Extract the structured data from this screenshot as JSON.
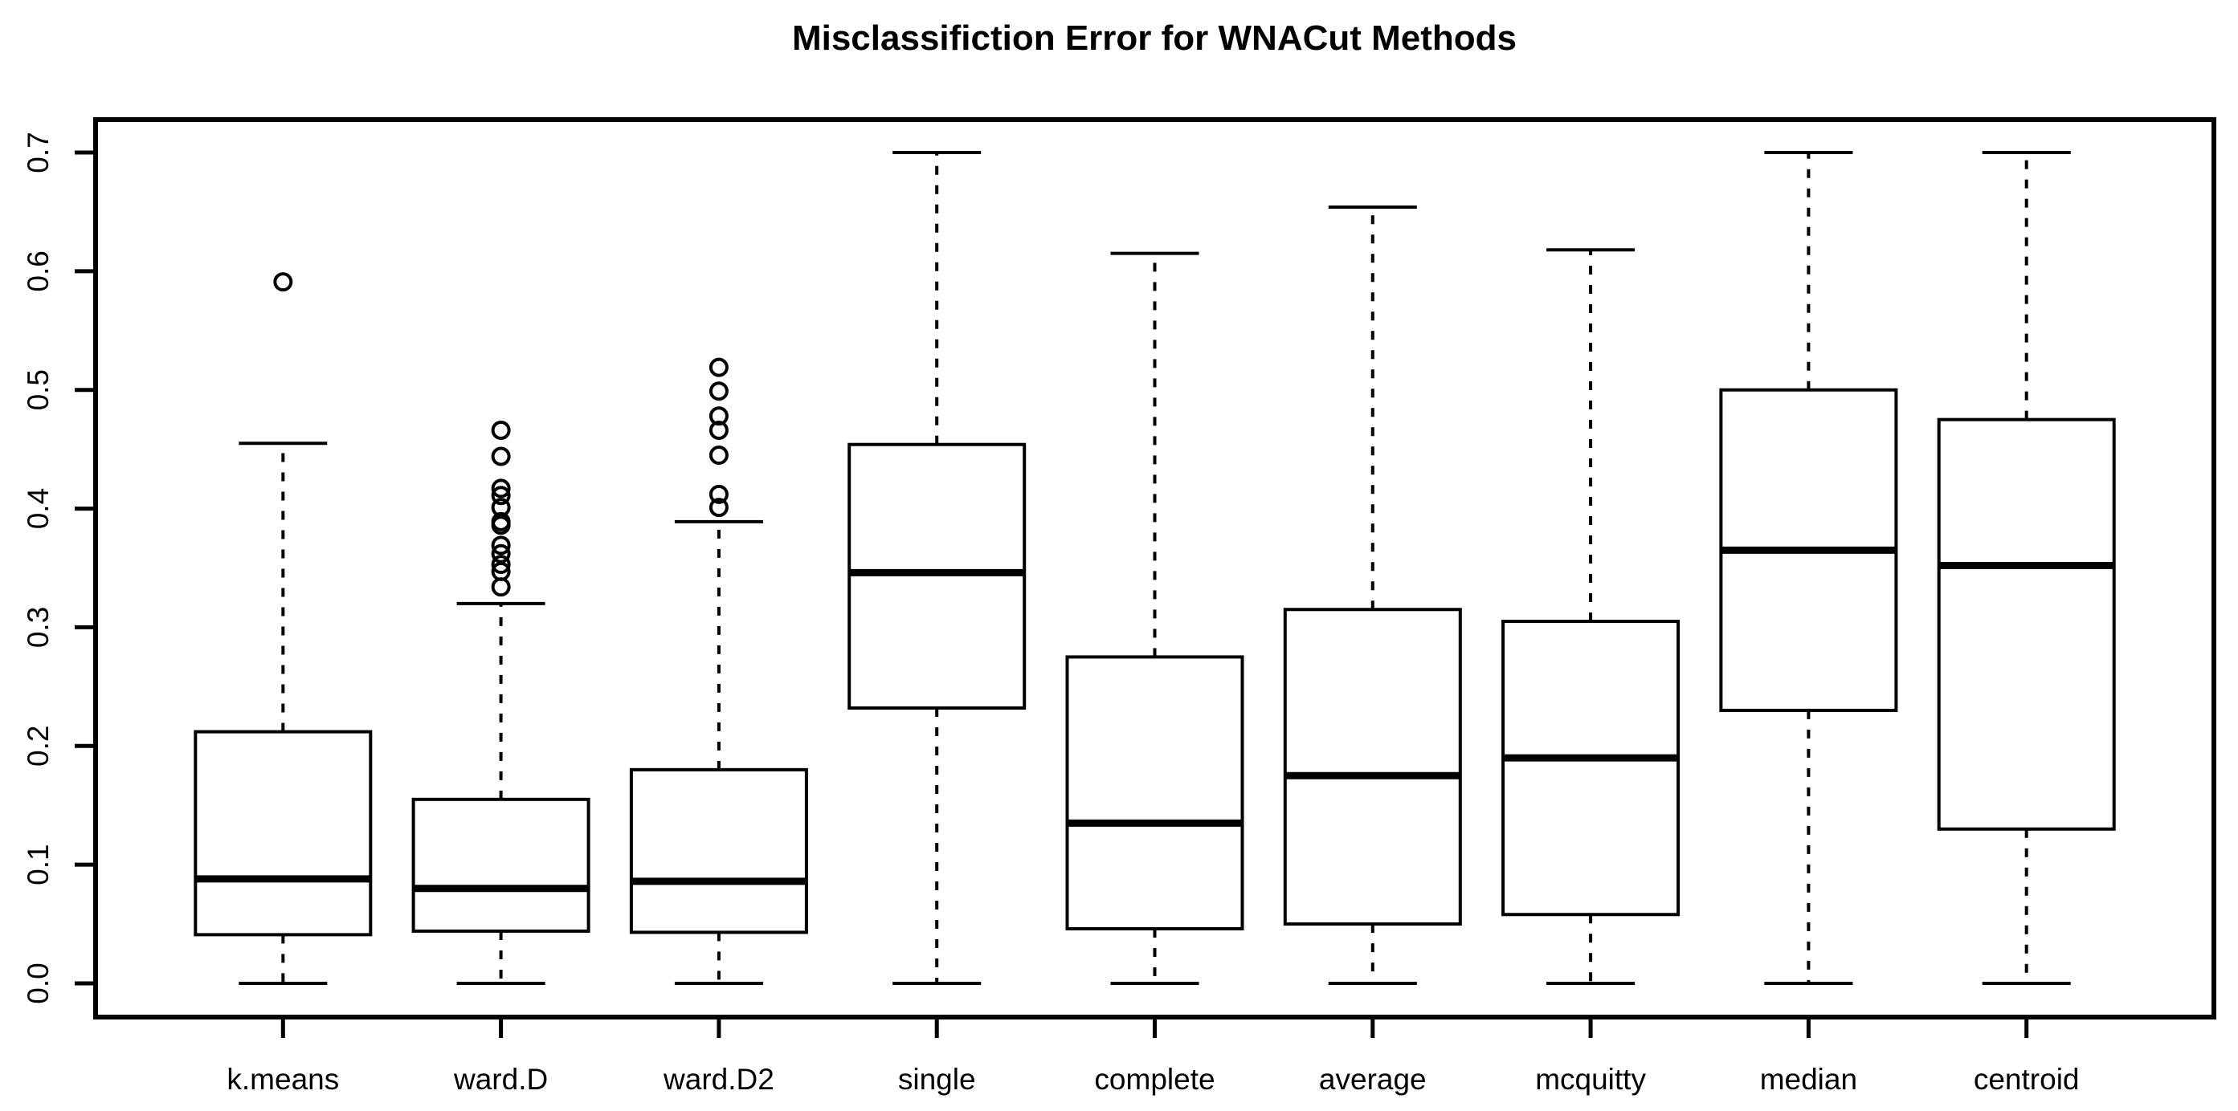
{
  "chart_data": {
    "type": "boxplot",
    "title": "Misclassifiction Error for WNACut Methods",
    "xlabel": "",
    "ylabel": "",
    "ylim": [
      0,
      0.7
    ],
    "yticks": [
      0.0,
      0.1,
      0.2,
      0.3,
      0.4,
      0.5,
      0.6,
      0.7
    ],
    "ytick_labels": [
      "0.0",
      "0.1",
      "0.2",
      "0.3",
      "0.4",
      "0.5",
      "0.6",
      "0.7"
    ],
    "grid": false,
    "legend": null,
    "categories": [
      "k.means",
      "ward.D",
      "ward.D2",
      "single",
      "complete",
      "average",
      "mcquitty",
      "median",
      "centroid"
    ],
    "series": [
      {
        "name": "k.means",
        "whisker_low": 0.0,
        "q1": 0.041,
        "median": 0.088,
        "q3": 0.212,
        "whisker_high": 0.455,
        "outliers": [
          0.591
        ]
      },
      {
        "name": "ward.D",
        "whisker_low": 0.0,
        "q1": 0.044,
        "median": 0.08,
        "q3": 0.155,
        "whisker_high": 0.32,
        "outliers": [
          0.466,
          0.444,
          0.417,
          0.411,
          0.401,
          0.389,
          0.386,
          0.369,
          0.362,
          0.353,
          0.347,
          0.334
        ]
      },
      {
        "name": "ward.D2",
        "whisker_low": 0.0,
        "q1": 0.043,
        "median": 0.086,
        "q3": 0.18,
        "whisker_high": 0.389,
        "outliers": [
          0.519,
          0.499,
          0.478,
          0.466,
          0.445,
          0.412,
          0.401
        ]
      },
      {
        "name": "single",
        "whisker_low": 0.0,
        "q1": 0.232,
        "median": 0.346,
        "q3": 0.454,
        "whisker_high": 0.7,
        "outliers": []
      },
      {
        "name": "complete",
        "whisker_low": 0.0,
        "q1": 0.046,
        "median": 0.135,
        "q3": 0.275,
        "whisker_high": 0.615,
        "outliers": []
      },
      {
        "name": "average",
        "whisker_low": 0.0,
        "q1": 0.05,
        "median": 0.175,
        "q3": 0.315,
        "whisker_high": 0.654,
        "outliers": []
      },
      {
        "name": "mcquitty",
        "whisker_low": 0.0,
        "q1": 0.058,
        "median": 0.19,
        "q3": 0.305,
        "whisker_high": 0.618,
        "outliers": []
      },
      {
        "name": "median",
        "whisker_low": 0.0,
        "q1": 0.23,
        "median": 0.365,
        "q3": 0.5,
        "whisker_high": 0.7,
        "outliers": []
      },
      {
        "name": "centroid",
        "whisker_low": 0.0,
        "q1": 0.13,
        "median": 0.352,
        "q3": 0.475,
        "whisker_high": 0.7,
        "outliers": []
      }
    ],
    "colors": {
      "stroke": "#000000",
      "box_fill": "#ffffff",
      "background": "#ffffff"
    }
  }
}
